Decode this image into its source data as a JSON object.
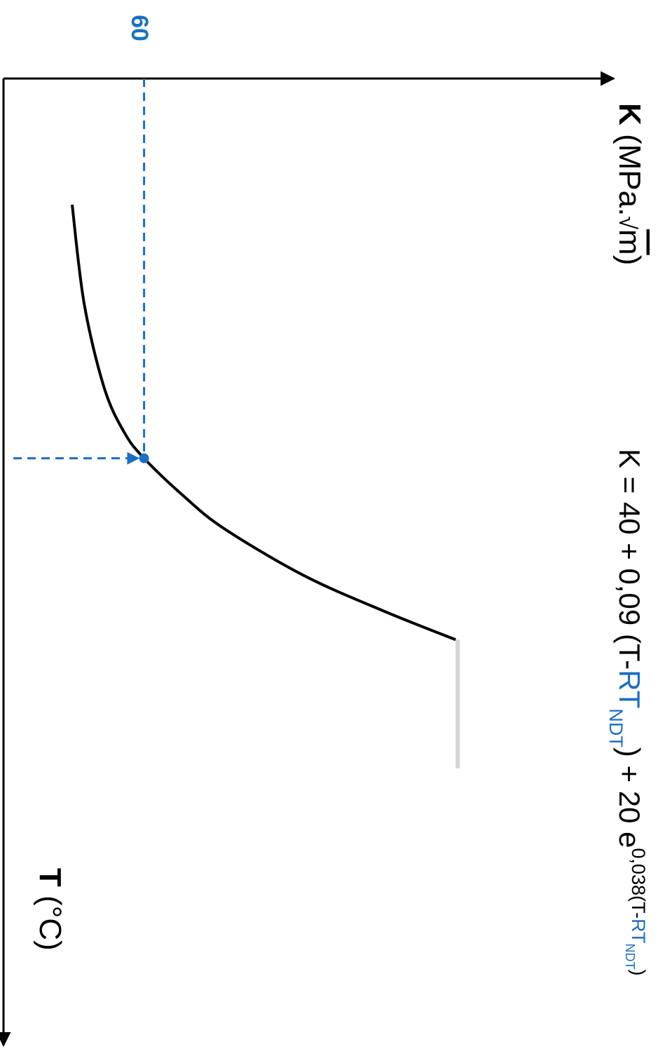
{
  "chart_data": {
    "type": "line",
    "title": "",
    "k_axis_label": {
      "symbol": "K",
      "unit_open": " (MPa.",
      "sqrt_sign": "√",
      "sqrt_arg": "m",
      "unit_close": ")"
    },
    "t_axis_label": {
      "symbol": "T",
      "unit": " (°C)"
    },
    "equation": {
      "prefix": "K = 40 + 0,09 (T-",
      "rt1": "RT",
      "ndt1": "NDT",
      "middle": ") + 20 e",
      "exp_prefix": "0,038(T-",
      "rt2": "RT",
      "ndt2": "NDT",
      "exp_suffix": ")"
    },
    "marker": {
      "k": 60,
      "label": "60"
    },
    "series": [
      {
        "values": [
          {
            "k": 42,
            "t": 0.0
          },
          {
            "k": 45,
            "t": 0.2
          },
          {
            "k": 50,
            "t": 0.37
          },
          {
            "k": 55,
            "t": 0.46
          },
          {
            "k": 60,
            "t": 0.513
          },
          {
            "k": 70,
            "t": 0.59
          },
          {
            "k": 80,
            "t": 0.655
          },
          {
            "k": 100,
            "t": 0.75
          },
          {
            "k": 120,
            "t": 0.822
          },
          {
            "k": 138,
            "t": 0.88
          }
        ]
      }
    ],
    "upper_shelf": {
      "k": 138,
      "t_from": 0.88,
      "t_to": 1.14
    },
    "colors": {
      "curve": "#000000",
      "marker": "#1a6fc4",
      "shelf": "#d4d4d4",
      "axes": "#000000"
    }
  }
}
